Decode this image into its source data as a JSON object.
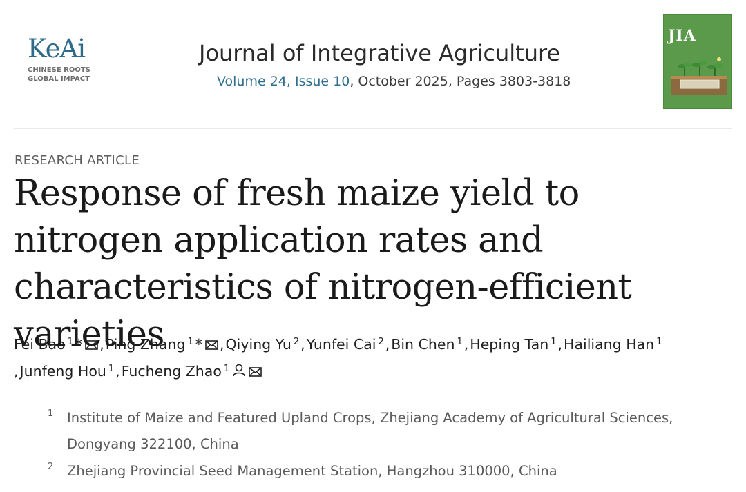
{
  "publisher": {
    "logo_word": "KeAi",
    "tagline_line1": "CHINESE ROOTS",
    "tagline_line2": "GLOBAL IMPACT"
  },
  "journal": {
    "title": "Journal of Integrative Agriculture",
    "volume_issue": "Volume 24, Issue 10",
    "date_pages": ", October 2025, Pages 3803-3818",
    "cover_word": "JIA",
    "cover_colors": {
      "background": "#5b9a4a"
    }
  },
  "article": {
    "type": "RESEARCH ARTICLE",
    "title": "Response of fresh maize yield to nitrogen application rates and characteristics of nitrogen-efficient varieties"
  },
  "authors": [
    {
      "name": "Fei Bao",
      "sup": "1",
      "corresponding": true,
      "email": true,
      "profile": false
    },
    {
      "name": "Ping Zhang",
      "sup": "1",
      "corresponding": true,
      "email": true,
      "profile": false
    },
    {
      "name": "Qiying Yu",
      "sup": "2",
      "corresponding": false,
      "email": false,
      "profile": false
    },
    {
      "name": "Yunfei Cai",
      "sup": "2",
      "corresponding": false,
      "email": false,
      "profile": false
    },
    {
      "name": "Bin Chen",
      "sup": "1",
      "corresponding": false,
      "email": false,
      "profile": false
    },
    {
      "name": "Heping Tan",
      "sup": "1",
      "corresponding": false,
      "email": false,
      "profile": false
    },
    {
      "name": "Hailiang Han",
      "sup": "1",
      "corresponding": false,
      "email": false,
      "profile": false
    },
    {
      "name": "Junfeng Hou",
      "sup": "1",
      "corresponding": false,
      "email": false,
      "profile": false
    },
    {
      "name": "Fucheng Zhao",
      "sup": "1",
      "corresponding": false,
      "email": true,
      "profile": true
    }
  ],
  "symbols": {
    "corresponding_mark": "*",
    "separator": ","
  },
  "affiliations": [
    {
      "num": "1",
      "text": "Institute of Maize and Featured Upland Crops, Zhejiang Academy of Agricultural Sciences, Dongyang 322100, China"
    },
    {
      "num": "2",
      "text": "Zhejiang Provincial Seed Management Station, Hangzhou 310000, China"
    }
  ],
  "colors": {
    "link": "#2f6e8f",
    "logo": "#2e6b88"
  },
  "icons": {
    "email": "envelope-icon",
    "profile": "person-icon"
  }
}
